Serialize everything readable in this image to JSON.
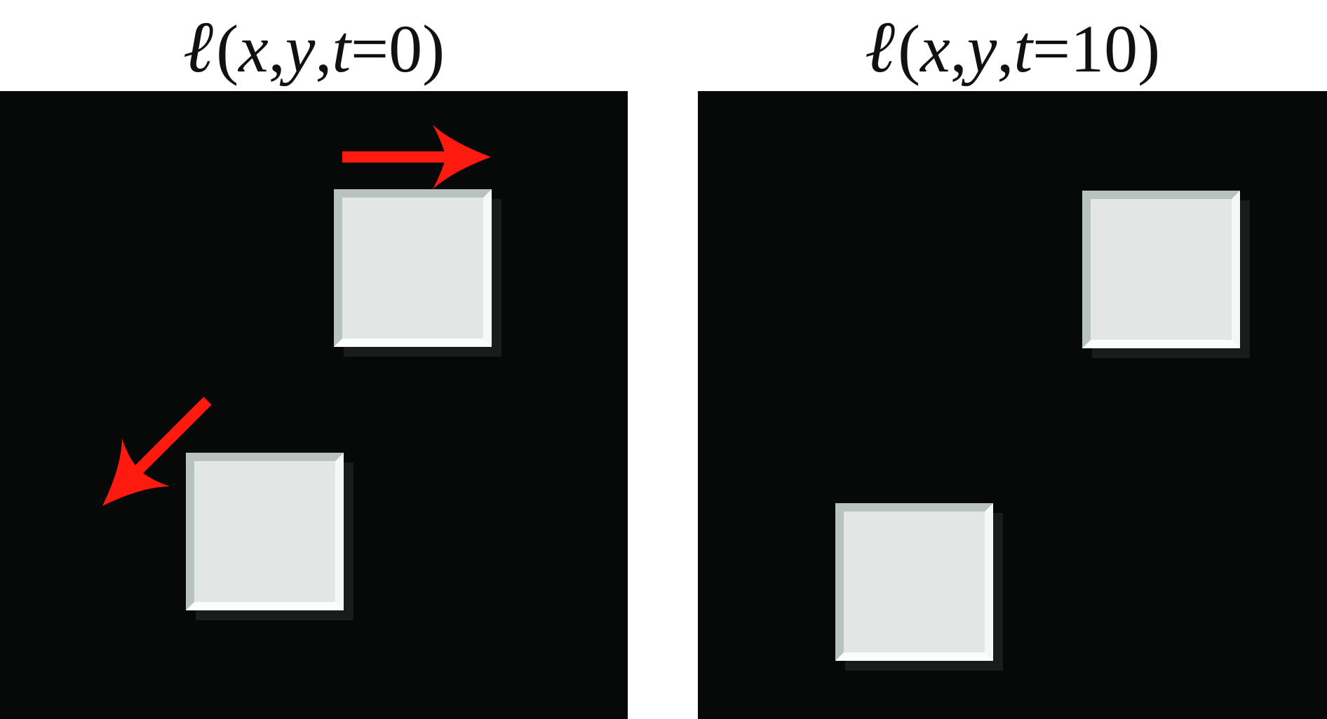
{
  "panels": [
    {
      "title": {
        "ell": "ℓ",
        "x": "x",
        "y": "y",
        "t": "t",
        "value": "0"
      },
      "squares": 2,
      "arrows": [
        "right",
        "down-left"
      ]
    },
    {
      "title": {
        "ell": "ℓ",
        "x": "x",
        "y": "y",
        "t": "t",
        "value": "10"
      },
      "squares": 2
    }
  ],
  "colors": {
    "background": "#070808",
    "square": "#e2e6e5",
    "arrow": "#ff1a0f"
  }
}
